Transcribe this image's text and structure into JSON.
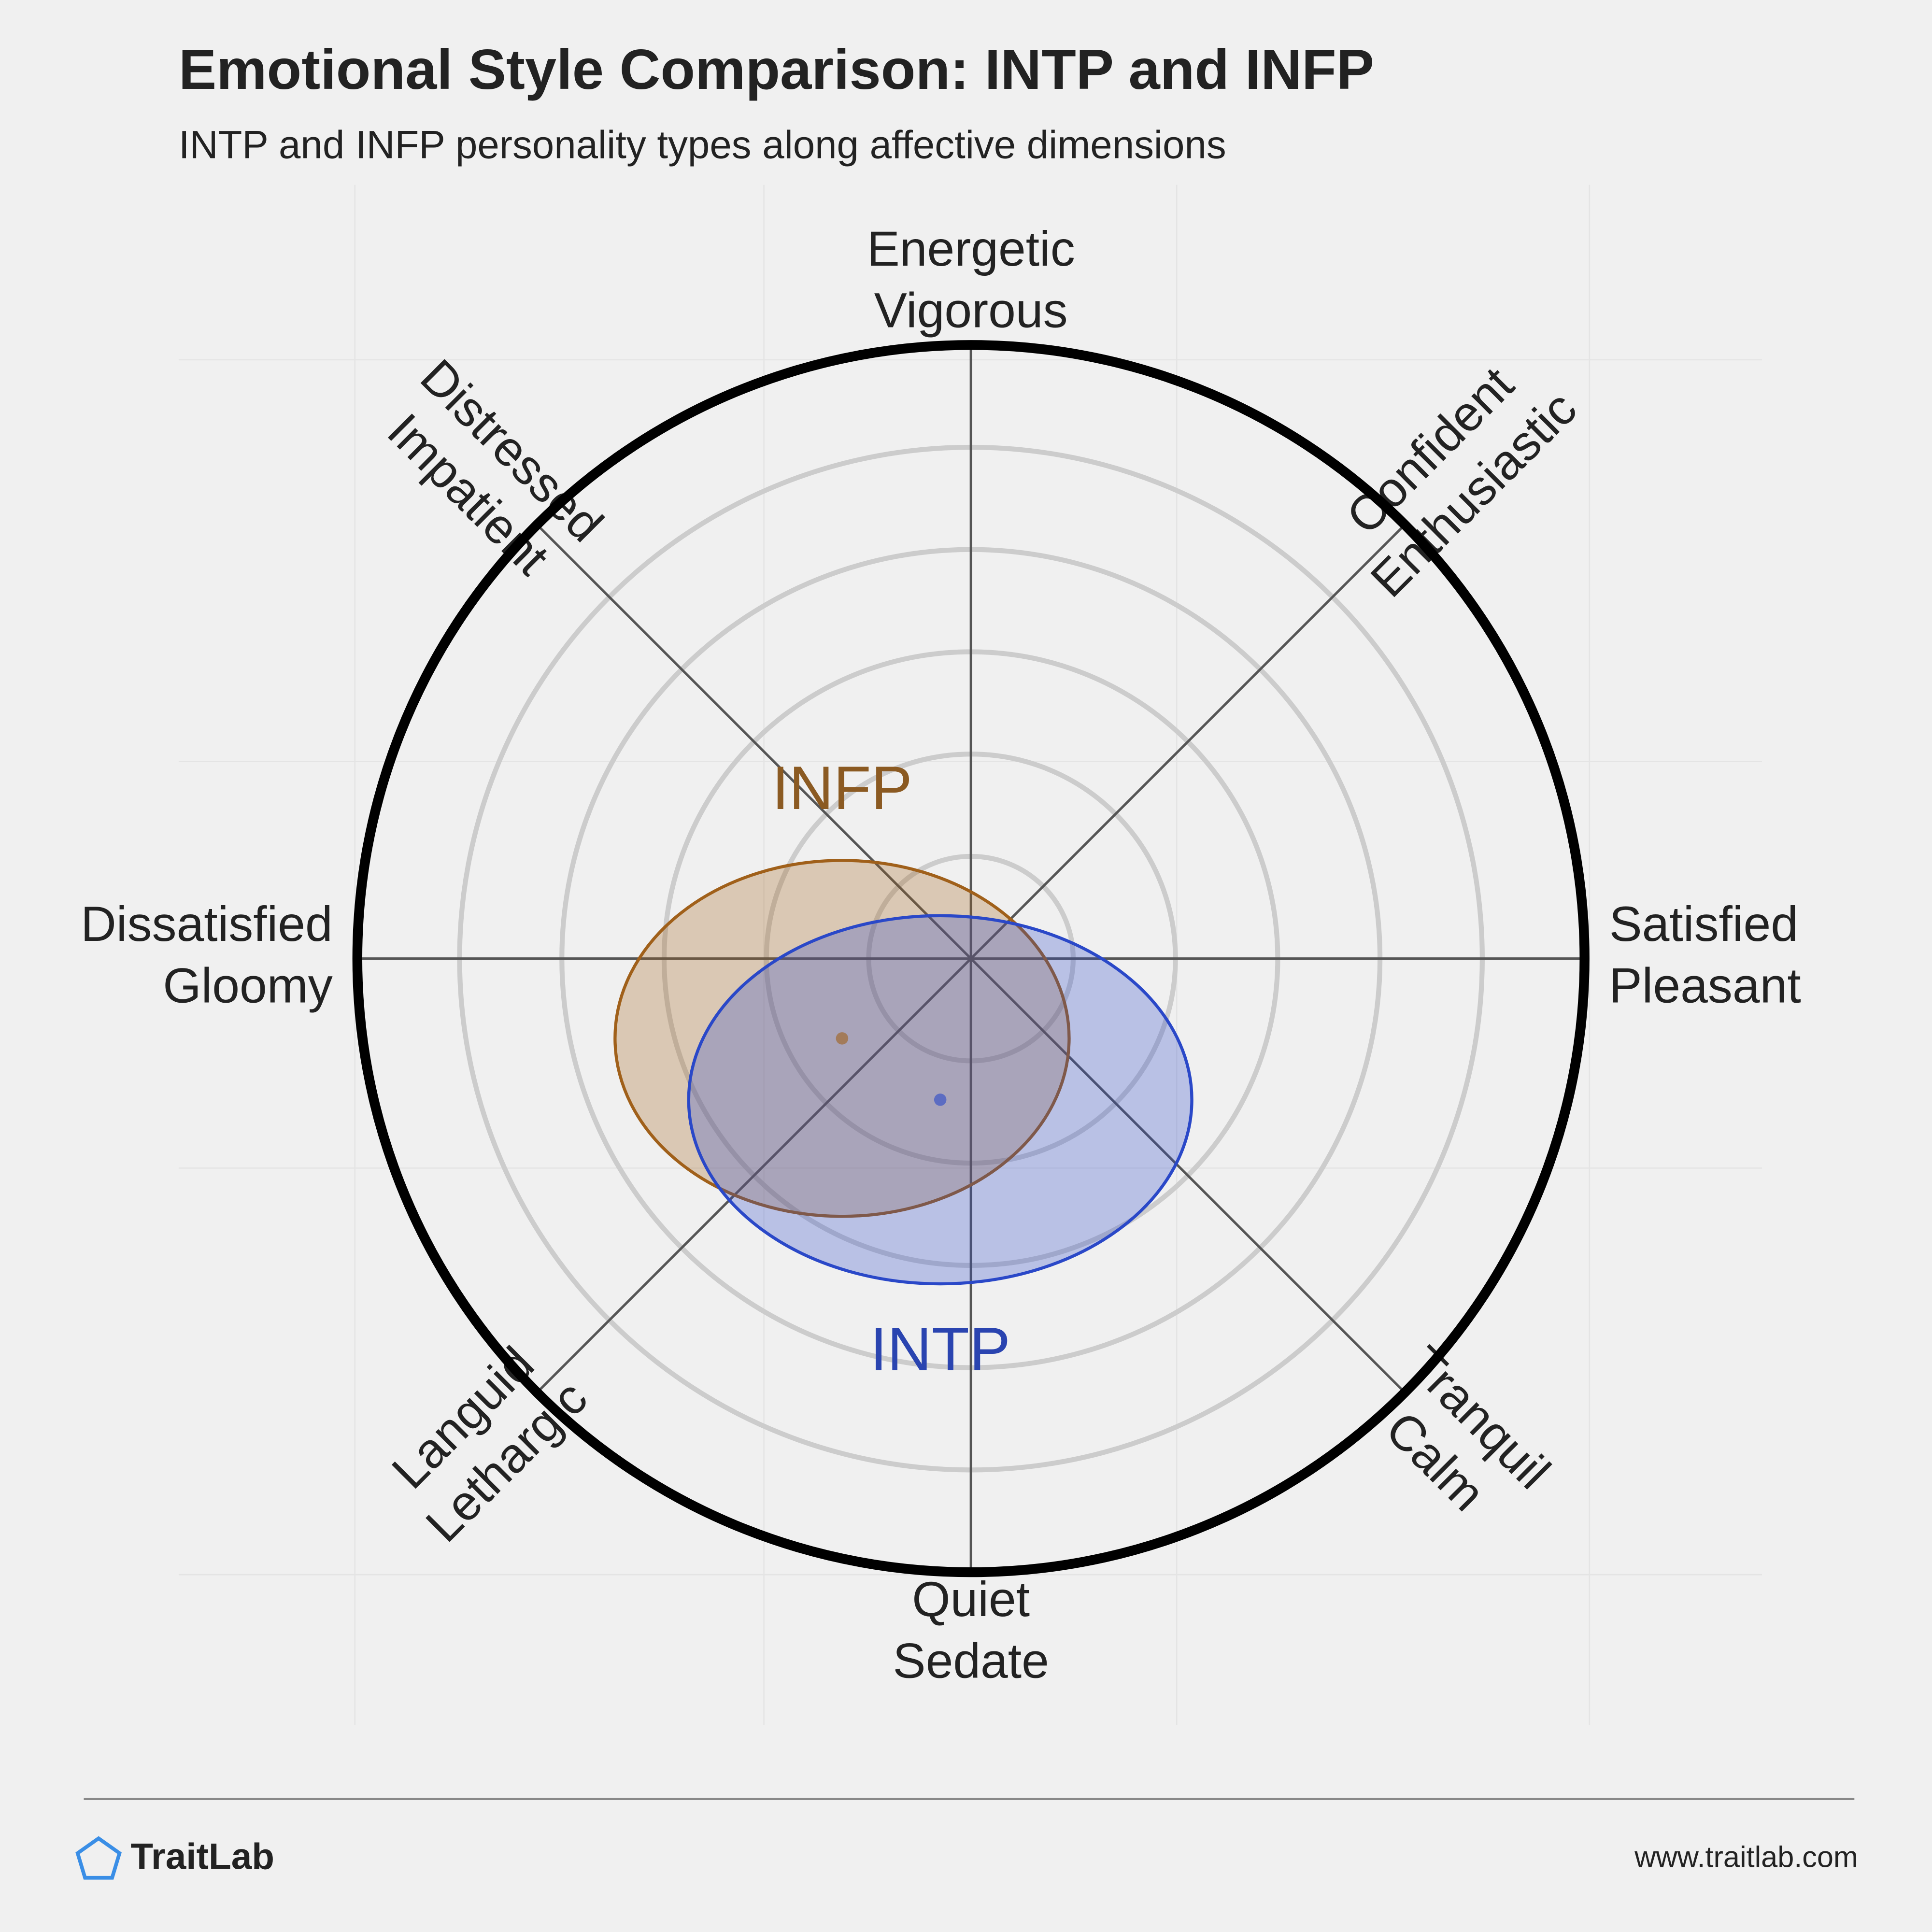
{
  "chart_data": {
    "type": "circumplex",
    "title": "Emotional Style Comparison: INTP and INFP",
    "subtitle": "INTP and INFP personality types along affective dimensions",
    "axis_labels": [
      [
        "Energetic",
        "Vigorous"
      ],
      [
        "Confident",
        "Enthusiastic"
      ],
      [
        "Satisfied",
        "Pleasant"
      ],
      [
        "Tranquil",
        "Calm"
      ],
      [
        "Quiet",
        "Sedate"
      ],
      [
        "Languid",
        "Lethargic"
      ],
      [
        "Dissatisfied",
        "Gloomy"
      ],
      [
        "Distressed",
        "Impatient"
      ]
    ],
    "xlim": [
      -1,
      1
    ],
    "ylim": [
      -1,
      1
    ],
    "series": [
      {
        "name": "INFP",
        "color": "#a0601a",
        "label_color": "#8b5a22",
        "x": -0.21,
        "y": -0.13,
        "rx": 0.37,
        "ry": 0.29
      },
      {
        "name": "INTP",
        "color": "#2a48c8",
        "label_color": "#2a44b0",
        "x": -0.05,
        "y": -0.23,
        "rx": 0.41,
        "ry": 0.3
      }
    ]
  },
  "footer": {
    "brand": "TraitLab",
    "url": "www.traitlab.com"
  }
}
